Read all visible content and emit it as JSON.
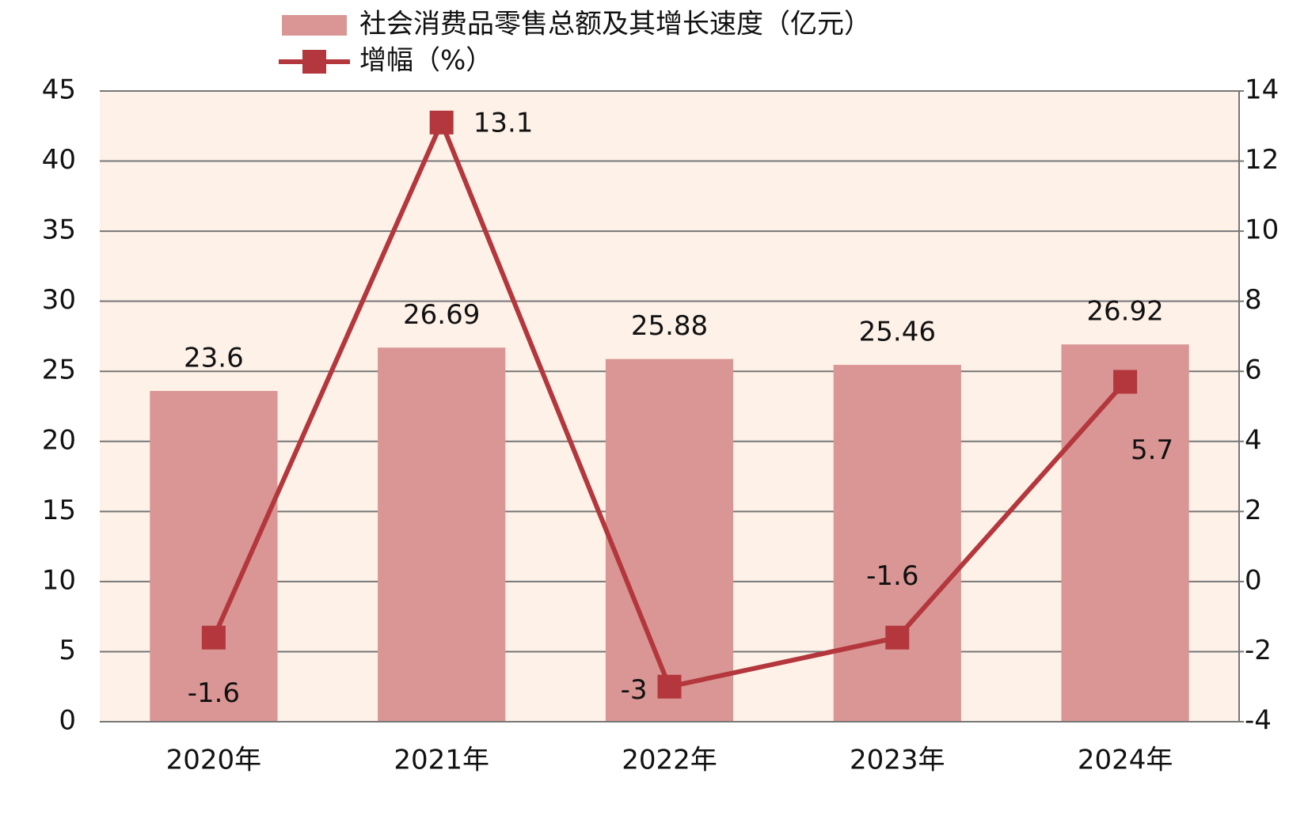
{
  "chart_data": {
    "type": "combo",
    "categories": [
      "2020年",
      "2021年",
      "2022年",
      "2023年",
      "2024年"
    ],
    "series": [
      {
        "name": "社会消费品零售总额及其增长速度（亿元）",
        "type": "bar",
        "color": "#d99694",
        "values": [
          23.6,
          26.69,
          25.88,
          25.46,
          26.92
        ]
      },
      {
        "name": "增幅（%）",
        "type": "line",
        "axis": "y2",
        "color": "#b3373c",
        "values": [
          -1.6,
          13.1,
          -3,
          -1.6,
          5.7
        ]
      }
    ],
    "ylim": [
      0,
      45
    ],
    "yticks": [
      0,
      5,
      10,
      15,
      20,
      25,
      30,
      35,
      40,
      45
    ],
    "y2lim": [
      -4,
      14
    ],
    "y2ticks": [
      -4,
      -2,
      0,
      2,
      4,
      6,
      8,
      10,
      12,
      14
    ],
    "grid": true
  }
}
